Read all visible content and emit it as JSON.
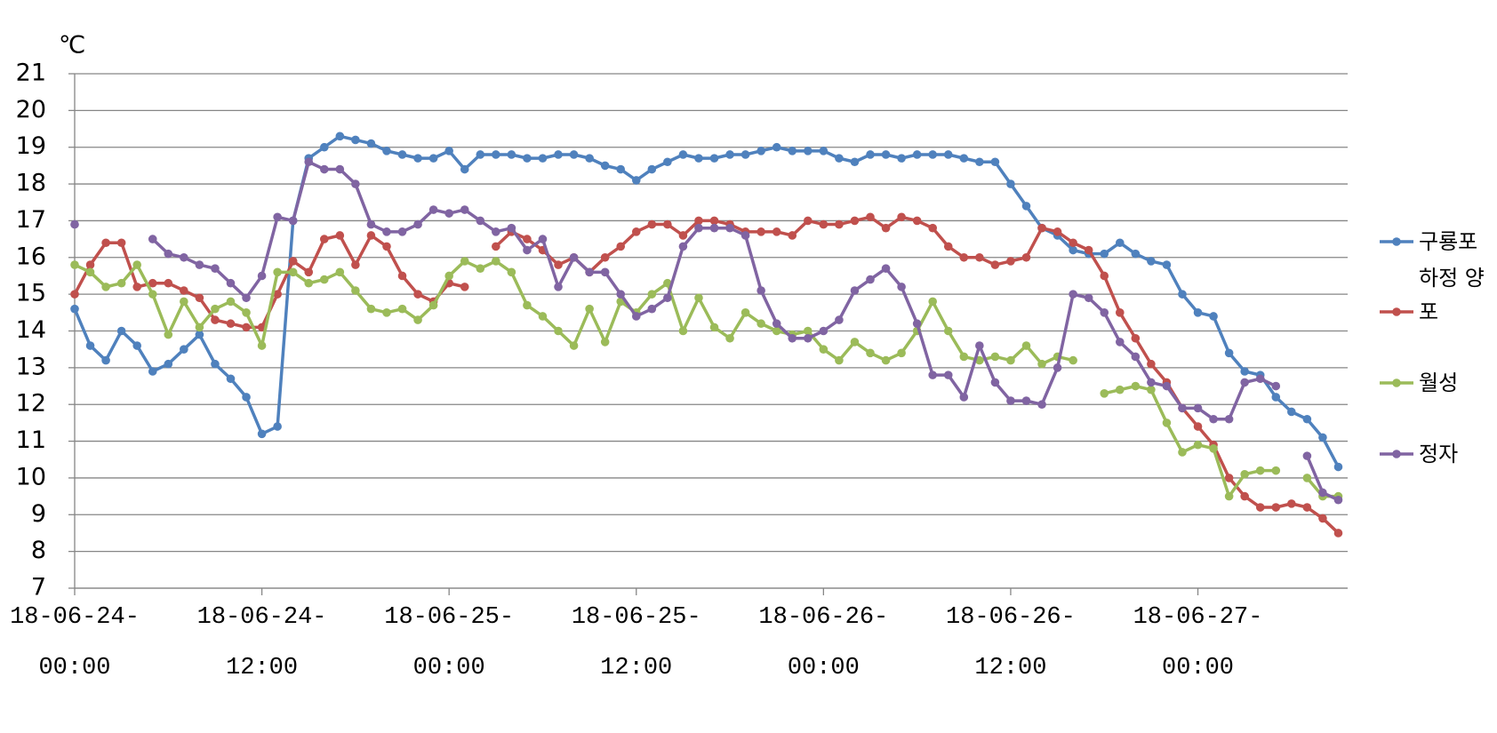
{
  "chart_data": {
    "type": "line",
    "y_label": "℃",
    "categories": [
      "18-06-24-00:00",
      null,
      null,
      null,
      null,
      null,
      null,
      null,
      null,
      null,
      null,
      null,
      "18-06-24-12:00",
      null,
      null,
      null,
      null,
      null,
      null,
      null,
      null,
      null,
      null,
      null,
      "18-06-25-00:00",
      null,
      null,
      null,
      null,
      null,
      null,
      null,
      null,
      null,
      null,
      null,
      "18-06-25-12:00",
      null,
      null,
      null,
      null,
      null,
      null,
      null,
      null,
      null,
      null,
      null,
      "18-06-26-00:00",
      null,
      null,
      null,
      null,
      null,
      null,
      null,
      null,
      null,
      null,
      null,
      "18-06-26-12:00",
      null,
      null,
      null,
      null,
      null,
      null,
      null,
      null,
      null,
      null,
      null,
      "18-06-27-00:00",
      null,
      null,
      null,
      null,
      null,
      null,
      null,
      null,
      null
    ],
    "series": [
      {
        "name": "구룡포",
        "color": "#4f81bd",
        "values": [
          14.6,
          13.6,
          13.2,
          14.0,
          13.6,
          12.9,
          13.1,
          13.5,
          13.9,
          13.1,
          12.7,
          12.2,
          11.2,
          11.4,
          17.0,
          18.7,
          19.0,
          19.3,
          19.2,
          19.1,
          18.9,
          18.8,
          18.7,
          18.7,
          18.9,
          18.4,
          18.8,
          18.8,
          18.8,
          18.7,
          18.7,
          18.8,
          18.8,
          18.7,
          18.5,
          18.4,
          18.1,
          18.4,
          18.6,
          18.8,
          18.7,
          18.7,
          18.8,
          18.8,
          18.9,
          19.0,
          18.9,
          18.9,
          18.9,
          18.7,
          18.6,
          18.8,
          18.8,
          18.7,
          18.8,
          18.8,
          18.8,
          18.7,
          18.6,
          18.6,
          18.0,
          17.4,
          16.8,
          16.6,
          16.2,
          16.1,
          16.1,
          16.4,
          16.1,
          15.9,
          15.8,
          15.0,
          14.5,
          14.4,
          13.4,
          12.9,
          12.8,
          12.2,
          11.8,
          11.6,
          11.1,
          10.3
        ]
      },
      {
        "name": "하정 양포",
        "color": "#c0504d",
        "values": [
          15.0,
          15.8,
          16.4,
          16.4,
          15.2,
          15.3,
          15.3,
          15.1,
          14.9,
          14.3,
          14.2,
          14.1,
          14.1,
          15.0,
          15.9,
          15.6,
          16.5,
          16.6,
          15.8,
          16.6,
          16.3,
          15.5,
          15.0,
          14.8,
          15.3,
          15.2,
          null,
          16.3,
          16.7,
          16.5,
          16.2,
          15.8,
          16.0,
          15.6,
          16.0,
          16.3,
          16.7,
          16.9,
          16.9,
          16.6,
          17.0,
          17.0,
          16.9,
          16.7,
          16.7,
          16.7,
          16.6,
          17.0,
          16.9,
          16.9,
          17.0,
          17.1,
          16.8,
          17.1,
          17.0,
          16.8,
          16.3,
          16.0,
          16.0,
          15.8,
          15.9,
          16.0,
          16.8,
          16.7,
          16.4,
          16.2,
          15.5,
          14.5,
          13.8,
          13.1,
          12.6,
          11.9,
          11.4,
          10.9,
          10.0,
          9.5,
          9.2,
          9.2,
          9.3,
          9.2,
          8.9,
          8.5
        ]
      },
      {
        "name": "월성",
        "color": "#9bbb59",
        "values": [
          15.8,
          15.6,
          15.2,
          15.3,
          15.8,
          15.0,
          13.9,
          14.8,
          14.1,
          14.6,
          14.8,
          14.5,
          13.6,
          15.6,
          15.6,
          15.3,
          15.4,
          15.6,
          15.1,
          14.6,
          14.5,
          14.6,
          14.3,
          14.7,
          15.5,
          15.9,
          15.7,
          15.9,
          15.6,
          14.7,
          14.4,
          14.0,
          13.6,
          14.6,
          13.7,
          14.8,
          14.5,
          15.0,
          15.3,
          14.0,
          14.9,
          14.1,
          13.8,
          14.5,
          14.2,
          14.0,
          13.9,
          14.0,
          13.5,
          13.2,
          13.7,
          13.4,
          13.2,
          13.4,
          14.0,
          14.8,
          14.0,
          13.3,
          13.2,
          13.3,
          13.2,
          13.6,
          13.1,
          13.3,
          13.2,
          null,
          12.3,
          12.4,
          12.5,
          12.4,
          11.5,
          10.7,
          10.9,
          10.8,
          9.5,
          10.1,
          10.2,
          10.2,
          null,
          10.0,
          9.5,
          9.5
        ]
      },
      {
        "name": "정자",
        "color": "#8064a2",
        "values": [
          16.9,
          null,
          null,
          null,
          null,
          16.5,
          16.1,
          16.0,
          15.8,
          15.7,
          15.3,
          14.9,
          15.5,
          17.1,
          17.0,
          18.6,
          18.4,
          18.4,
          18.0,
          16.9,
          16.7,
          16.7,
          16.9,
          17.3,
          17.2,
          17.3,
          17.0,
          16.7,
          16.8,
          16.2,
          16.5,
          15.2,
          16.0,
          15.6,
          15.6,
          15.0,
          14.4,
          14.6,
          14.9,
          16.3,
          16.8,
          16.8,
          16.8,
          16.6,
          15.1,
          14.2,
          13.8,
          13.8,
          14.0,
          14.3,
          15.1,
          15.4,
          15.7,
          15.2,
          14.2,
          12.8,
          12.8,
          12.2,
          13.6,
          12.6,
          12.1,
          12.1,
          12.0,
          13.0,
          15.0,
          14.9,
          14.5,
          13.7,
          13.3,
          12.6,
          12.5,
          11.9,
          11.9,
          11.6,
          11.6,
          12.6,
          12.7,
          12.5,
          null,
          10.6,
          9.6,
          9.4
        ]
      }
    ],
    "ylim": [
      7,
      21
    ],
    "yticks": [
      7,
      8,
      9,
      10,
      11,
      12,
      13,
      14,
      15,
      16,
      17,
      18,
      19,
      20,
      21
    ],
    "grid": true,
    "legend": "right"
  }
}
